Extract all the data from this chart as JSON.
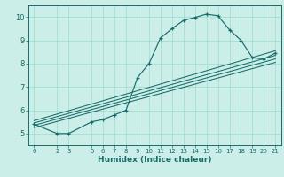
{
  "xlabel": "Humidex (Indice chaleur)",
  "bg_color": "#cceee8",
  "grid_color": "#99ddcc",
  "line_color": "#1a6b6b",
  "axis_bg": "#2a7070",
  "curve_x": [
    0,
    2,
    3,
    5,
    6,
    7,
    8,
    9,
    10,
    11,
    12,
    13,
    14,
    15,
    16,
    17,
    18,
    19,
    20,
    21
  ],
  "curve_y": [
    5.4,
    5.0,
    5.0,
    5.5,
    5.6,
    5.8,
    6.0,
    7.4,
    8.0,
    9.1,
    9.5,
    9.85,
    9.98,
    10.12,
    10.05,
    9.45,
    9.0,
    8.25,
    8.2,
    8.45
  ],
  "straight_lines": [
    [
      [
        0,
        21
      ],
      [
        5.55,
        8.55
      ]
    ],
    [
      [
        0,
        21
      ],
      [
        5.45,
        8.35
      ]
    ],
    [
      [
        0,
        21
      ],
      [
        5.35,
        8.2
      ]
    ],
    [
      [
        0,
        21
      ],
      [
        5.25,
        8.05
      ]
    ]
  ],
  "xlim": [
    -0.5,
    21.5
  ],
  "ylim": [
    4.5,
    10.5
  ],
  "xticks": [
    0,
    2,
    3,
    5,
    6,
    7,
    8,
    9,
    10,
    11,
    12,
    13,
    14,
    15,
    16,
    17,
    18,
    19,
    20,
    21
  ],
  "yticks": [
    5,
    6,
    7,
    8,
    9,
    10
  ]
}
